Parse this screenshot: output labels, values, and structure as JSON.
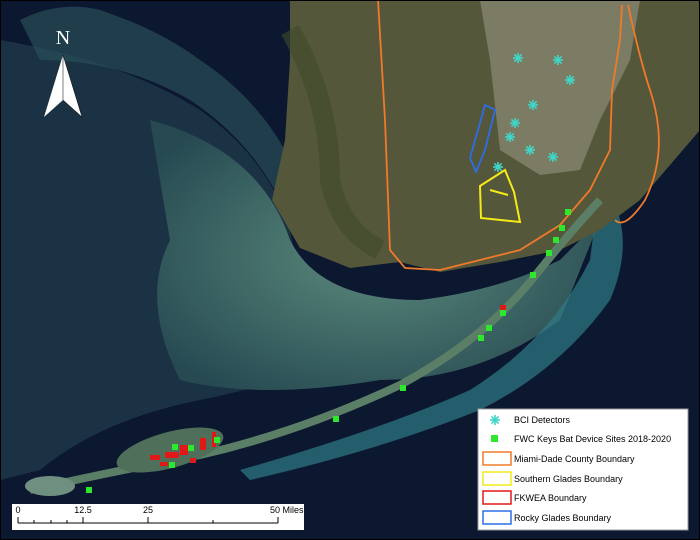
{
  "north_arrow": {
    "label": "N"
  },
  "legend": {
    "items": [
      {
        "label": "BCI Detectors"
      },
      {
        "label": "FWC Keys Bat Device Sites 2018-2020"
      },
      {
        "label": "Miami-Dade County Boundary"
      },
      {
        "label": "Southern Glades Boundary"
      },
      {
        "label": "FKWEA Boundary"
      },
      {
        "label": "Rocky Glades Boundary"
      }
    ]
  },
  "scale_bar": {
    "labels": [
      "0",
      "12.5",
      "25",
      "50 Miles"
    ]
  }
}
